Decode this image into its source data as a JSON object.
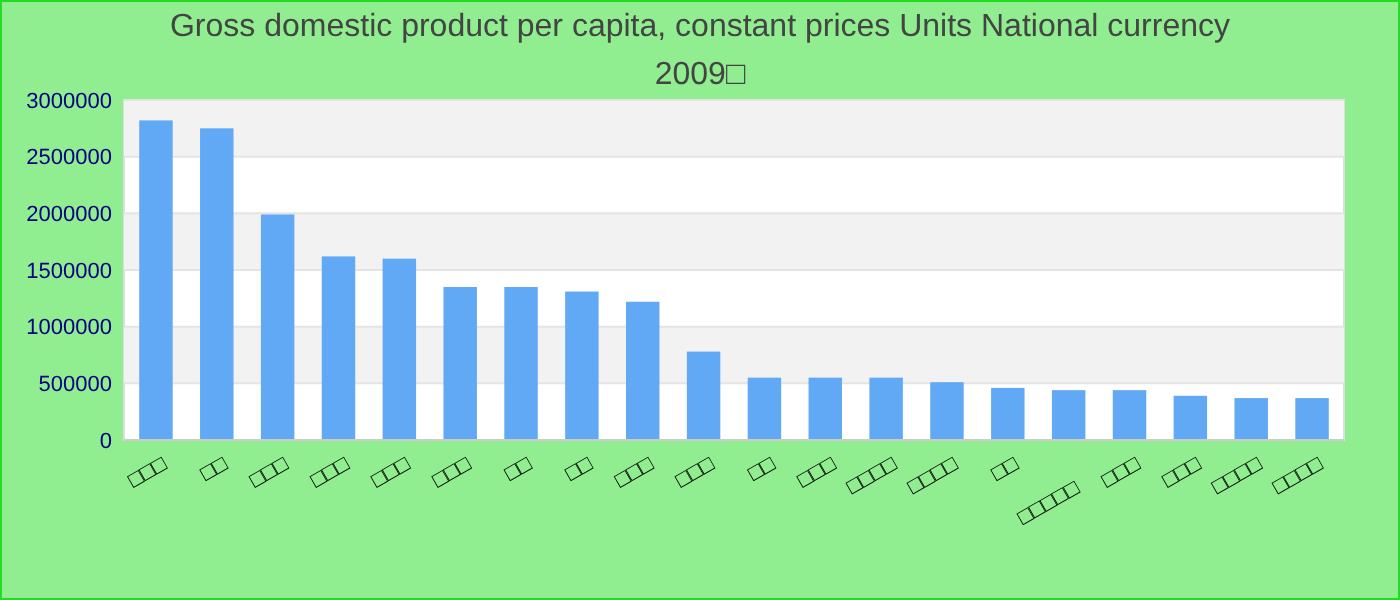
{
  "chart_data": {
    "type": "bar",
    "title": "Gross domestic product per capita, constant prices Units National currency 2009□",
    "categories": [
      "□□□",
      "□□",
      "□□□",
      "□□□",
      "□□□",
      "□□□",
      "□□",
      "□□",
      "□□□",
      "□□□",
      "□□",
      "□□□",
      "□□□□",
      "□□□□",
      "□□",
      "□□□□□",
      "□□□",
      "□□□",
      "□□□□",
      "□□□□"
    ],
    "values": [
      2820000,
      2750000,
      1990000,
      1620000,
      1600000,
      1350000,
      1350000,
      1310000,
      1220000,
      780000,
      550000,
      550000,
      550000,
      510000,
      460000,
      440000,
      440000,
      390000,
      370000,
      370000
    ],
    "color": "#62a9f5",
    "ylim": [
      0,
      3000000
    ],
    "yticks": [
      0,
      500000,
      1000000,
      1500000,
      2000000,
      2500000,
      3000000
    ],
    "grid": "y"
  }
}
